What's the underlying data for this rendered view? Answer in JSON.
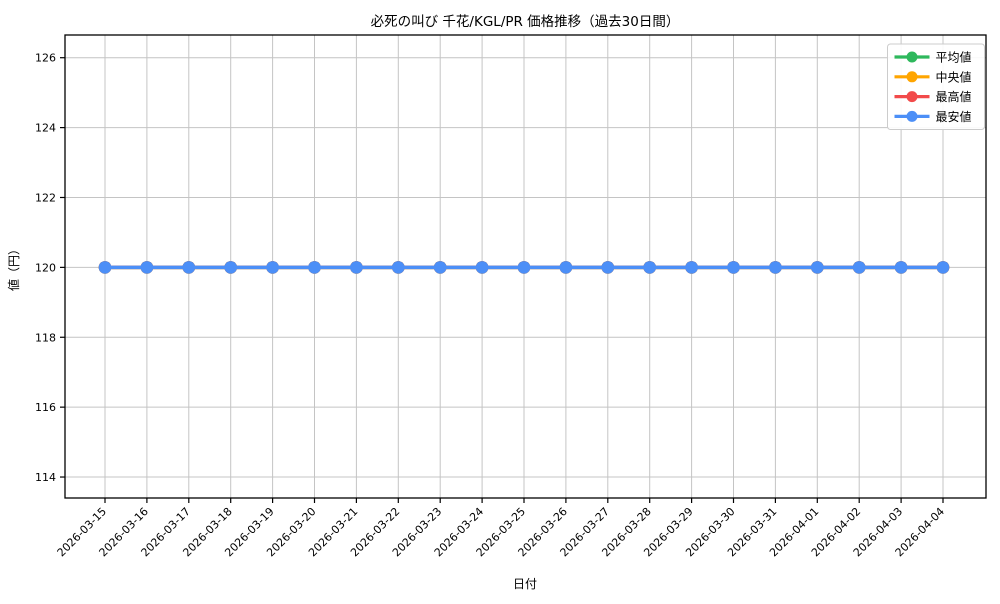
{
  "chart_data": {
    "type": "line",
    "title": "必死の叫び 千花/KGL/PR 価格推移（過去30日間）",
    "xlabel": "日付",
    "ylabel": "値（円）",
    "categories": [
      "2026-03-15",
      "2026-03-16",
      "2026-03-17",
      "2026-03-18",
      "2026-03-19",
      "2026-03-20",
      "2026-03-21",
      "2026-03-22",
      "2026-03-23",
      "2026-03-24",
      "2026-03-25",
      "2026-03-26",
      "2026-03-27",
      "2026-03-28",
      "2026-03-29",
      "2026-03-30",
      "2026-03-31",
      "2026-04-01",
      "2026-04-02",
      "2026-04-03",
      "2026-04-04"
    ],
    "series": [
      {
        "name": "平均値",
        "color": "#2eb85c",
        "values": [
          120,
          120,
          120,
          120,
          120,
          120,
          120,
          120,
          120,
          120,
          120,
          120,
          120,
          120,
          120,
          120,
          120,
          120,
          120,
          120,
          120
        ]
      },
      {
        "name": "中央値",
        "color": "#ffa500",
        "values": [
          120,
          120,
          120,
          120,
          120,
          120,
          120,
          120,
          120,
          120,
          120,
          120,
          120,
          120,
          120,
          120,
          120,
          120,
          120,
          120,
          120
        ]
      },
      {
        "name": "最高値",
        "color": "#f24a4a",
        "values": [
          120,
          120,
          120,
          120,
          120,
          120,
          120,
          120,
          120,
          120,
          120,
          120,
          120,
          120,
          120,
          120,
          120,
          120,
          120,
          120,
          120
        ]
      },
      {
        "name": "最安値",
        "color": "#4c8ff7",
        "values": [
          120,
          120,
          120,
          120,
          120,
          120,
          120,
          120,
          120,
          120,
          120,
          120,
          120,
          120,
          120,
          120,
          120,
          120,
          120,
          120,
          120
        ]
      }
    ],
    "yticks": [
      114,
      116,
      118,
      120,
      122,
      124,
      126
    ],
    "ylim": [
      113.4,
      126.65
    ],
    "grid": true,
    "legend_position": "upper right",
    "colors": {
      "grid": "#c4c4c4",
      "axis": "#000000",
      "legend_border": "#cccccc",
      "background": "#ffffff"
    }
  }
}
